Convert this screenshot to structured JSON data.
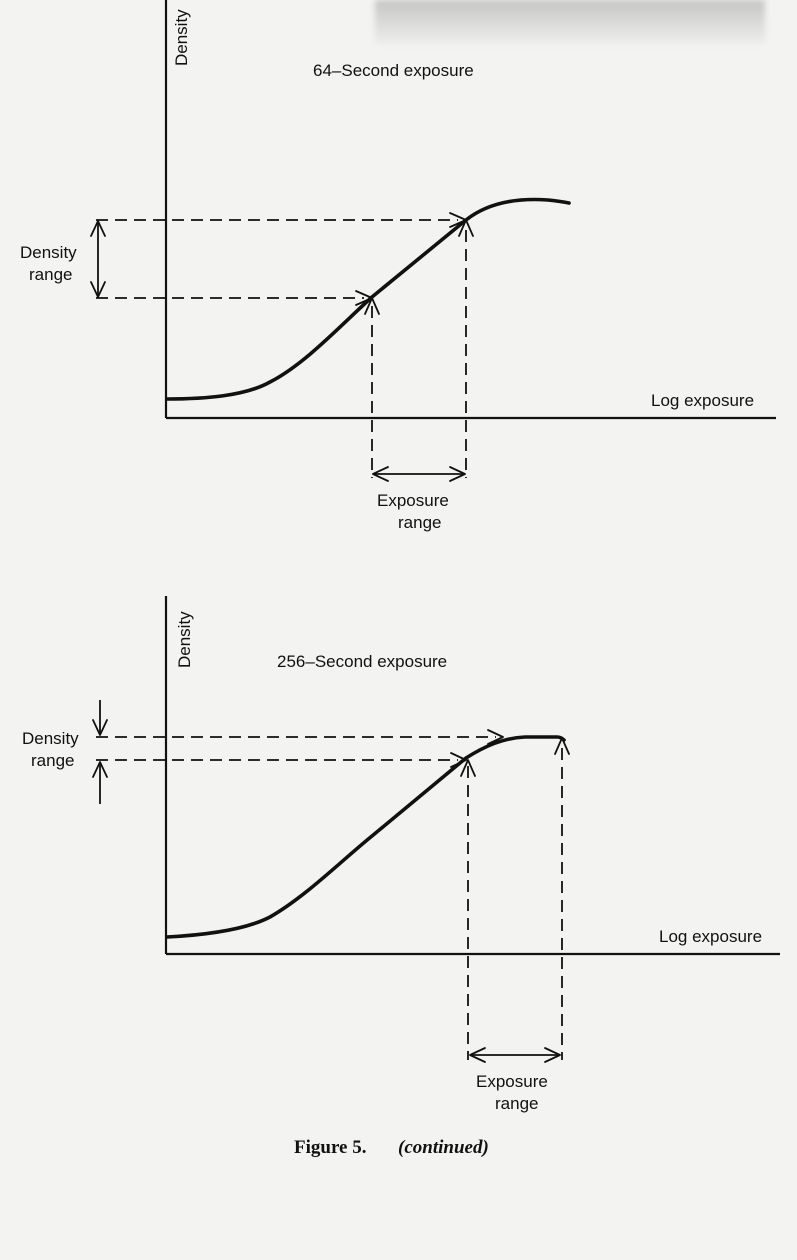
{
  "panel_top": {
    "title": "64–Second exposure",
    "y_axis_label": "Density",
    "x_axis_label": "Log exposure",
    "density_range_label": [
      "Density",
      "range"
    ],
    "exposure_range_label": [
      "Exposure",
      "range"
    ]
  },
  "panel_bottom": {
    "title": "256–Second exposure",
    "y_axis_label": "Density",
    "x_axis_label": "Log exposure",
    "density_range_label": [
      "Density",
      "range"
    ],
    "exposure_range_label": [
      "Exposure",
      "range"
    ]
  },
  "caption": {
    "figure": "Figure 5.",
    "note": "(continued)"
  }
}
